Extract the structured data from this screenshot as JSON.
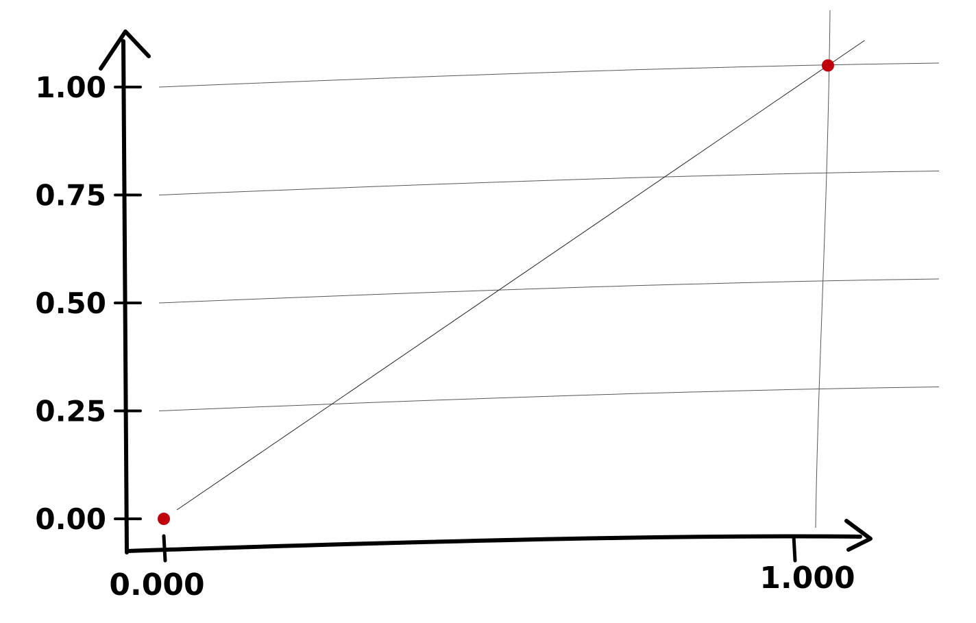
{
  "chart_data": {
    "type": "line",
    "title": "",
    "xlabel": "",
    "ylabel": "",
    "xlim": [
      0,
      1
    ],
    "ylim": [
      0,
      1
    ],
    "grid": true,
    "x_ticks": [
      "0.000",
      "1.000"
    ],
    "y_ticks": [
      "0.00",
      "0.25",
      "0.50",
      "0.75",
      "1.00"
    ],
    "series": [
      {
        "points": [
          {
            "x": 0.0,
            "y": 0.0
          },
          {
            "x": 1.0,
            "y": 1.05
          }
        ]
      }
    ],
    "colors": {
      "axis": "#000000",
      "grid": "#555555",
      "line": "#222222",
      "marker": "#c0000a"
    }
  }
}
